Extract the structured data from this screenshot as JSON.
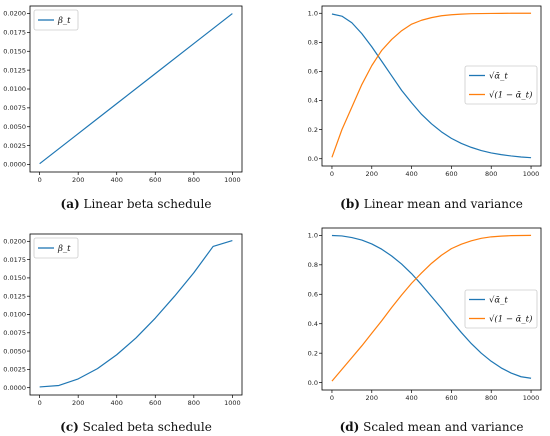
{
  "chart_data": [
    {
      "panel": "a",
      "type": "line",
      "caption_label": "(a)",
      "caption_text": " Linear beta schedule",
      "xlim": [
        0,
        1000
      ],
      "ylim": [
        0.0,
        0.02
      ],
      "xticks": [
        "0",
        "200",
        "400",
        "600",
        "800",
        "1000"
      ],
      "yticks": [
        "0.0000",
        "0.0025",
        "0.0050",
        "0.0075",
        "0.0100",
        "0.0125",
        "0.0150",
        "0.0175",
        "0.0200"
      ],
      "legend_position": "top-left",
      "series": [
        {
          "name": "β_t",
          "color": "#1f77b4",
          "x": [
            0,
            200,
            400,
            600,
            800,
            1000
          ],
          "y": [
            0.0001,
            0.00408,
            0.00806,
            0.01204,
            0.01602,
            0.02
          ]
        }
      ]
    },
    {
      "panel": "b",
      "type": "line",
      "caption_label": "(b)",
      "caption_text": " Linear mean and variance",
      "xlim": [
        0,
        1000
      ],
      "ylim": [
        0.0,
        1.0
      ],
      "xticks": [
        "0",
        "200",
        "400",
        "600",
        "800",
        "1000"
      ],
      "yticks": [
        "0.0",
        "0.2",
        "0.4",
        "0.6",
        "0.8",
        "1.0"
      ],
      "legend_position": "center-right",
      "series": [
        {
          "name": "√ᾱ_t",
          "color": "#1f77b4",
          "x": [
            0,
            50,
            100,
            150,
            200,
            250,
            300,
            350,
            400,
            450,
            500,
            550,
            600,
            650,
            700,
            750,
            800,
            850,
            900,
            950,
            1000
          ],
          "y": [
            0.995,
            0.98,
            0.935,
            0.86,
            0.77,
            0.67,
            0.57,
            0.47,
            0.385,
            0.305,
            0.24,
            0.185,
            0.14,
            0.105,
            0.078,
            0.056,
            0.04,
            0.028,
            0.019,
            0.012,
            0.007
          ]
        },
        {
          "name": "√(1 − ᾱ_t)",
          "color": "#ff7f0e",
          "x": [
            0,
            50,
            100,
            150,
            200,
            250,
            300,
            350,
            400,
            450,
            500,
            550,
            600,
            650,
            700,
            750,
            800,
            850,
            900,
            950,
            1000
          ],
          "y": [
            0.01,
            0.2,
            0.355,
            0.51,
            0.64,
            0.745,
            0.82,
            0.88,
            0.925,
            0.952,
            0.97,
            0.983,
            0.99,
            0.994,
            0.997,
            0.998,
            0.999,
            0.9995,
            1.0,
            1.0,
            1.0
          ]
        }
      ]
    },
    {
      "panel": "c",
      "type": "line",
      "caption_label": "(c)",
      "caption_text": " Scaled beta schedule",
      "xlim": [
        0,
        1000
      ],
      "ylim": [
        0.0,
        0.02
      ],
      "xticks": [
        "0",
        "200",
        "400",
        "600",
        "800",
        "1000"
      ],
      "yticks": [
        "0.0000",
        "0.0025",
        "0.0050",
        "0.0075",
        "0.0100",
        "0.0125",
        "0.0150",
        "0.0175",
        "0.0200"
      ],
      "legend_position": "top-left",
      "series": [
        {
          "name": "β_t",
          "color": "#1f77b4",
          "x": [
            0,
            100,
            200,
            300,
            400,
            500,
            600,
            700,
            800,
            900,
            1000
          ],
          "y": [
            0.0001,
            0.0003,
            0.0012,
            0.0026,
            0.0045,
            0.0068,
            0.0095,
            0.0125,
            0.0157,
            0.0193,
            0.0201
          ]
        }
      ]
    },
    {
      "panel": "d",
      "type": "line",
      "caption_label": "(d)",
      "caption_text": " Scaled mean and variance",
      "xlim": [
        0,
        1000
      ],
      "ylim": [
        0.0,
        1.0
      ],
      "xticks": [
        "0",
        "200",
        "400",
        "600",
        "800",
        "1000"
      ],
      "yticks": [
        "0.0",
        "0.2",
        "0.4",
        "0.6",
        "0.8",
        "1.0"
      ],
      "legend_position": "center-right",
      "series": [
        {
          "name": "√ᾱ_t",
          "color": "#1f77b4",
          "x": [
            0,
            50,
            100,
            150,
            200,
            250,
            300,
            350,
            400,
            450,
            500,
            550,
            600,
            650,
            700,
            750,
            800,
            850,
            900,
            950,
            1000
          ],
          "y": [
            0.999,
            0.996,
            0.985,
            0.968,
            0.942,
            0.906,
            0.86,
            0.805,
            0.74,
            0.665,
            0.585,
            0.505,
            0.42,
            0.34,
            0.265,
            0.2,
            0.145,
            0.1,
            0.065,
            0.04,
            0.03
          ]
        },
        {
          "name": "√(1 − ᾱ_t)",
          "color": "#ff7f0e",
          "x": [
            0,
            50,
            100,
            150,
            200,
            250,
            300,
            350,
            400,
            450,
            500,
            550,
            600,
            650,
            700,
            750,
            800,
            850,
            900,
            950,
            1000
          ],
          "y": [
            0.01,
            0.09,
            0.17,
            0.25,
            0.335,
            0.42,
            0.51,
            0.595,
            0.675,
            0.745,
            0.81,
            0.865,
            0.91,
            0.94,
            0.963,
            0.98,
            0.99,
            0.995,
            0.998,
            0.999,
            1.0
          ]
        }
      ]
    }
  ]
}
